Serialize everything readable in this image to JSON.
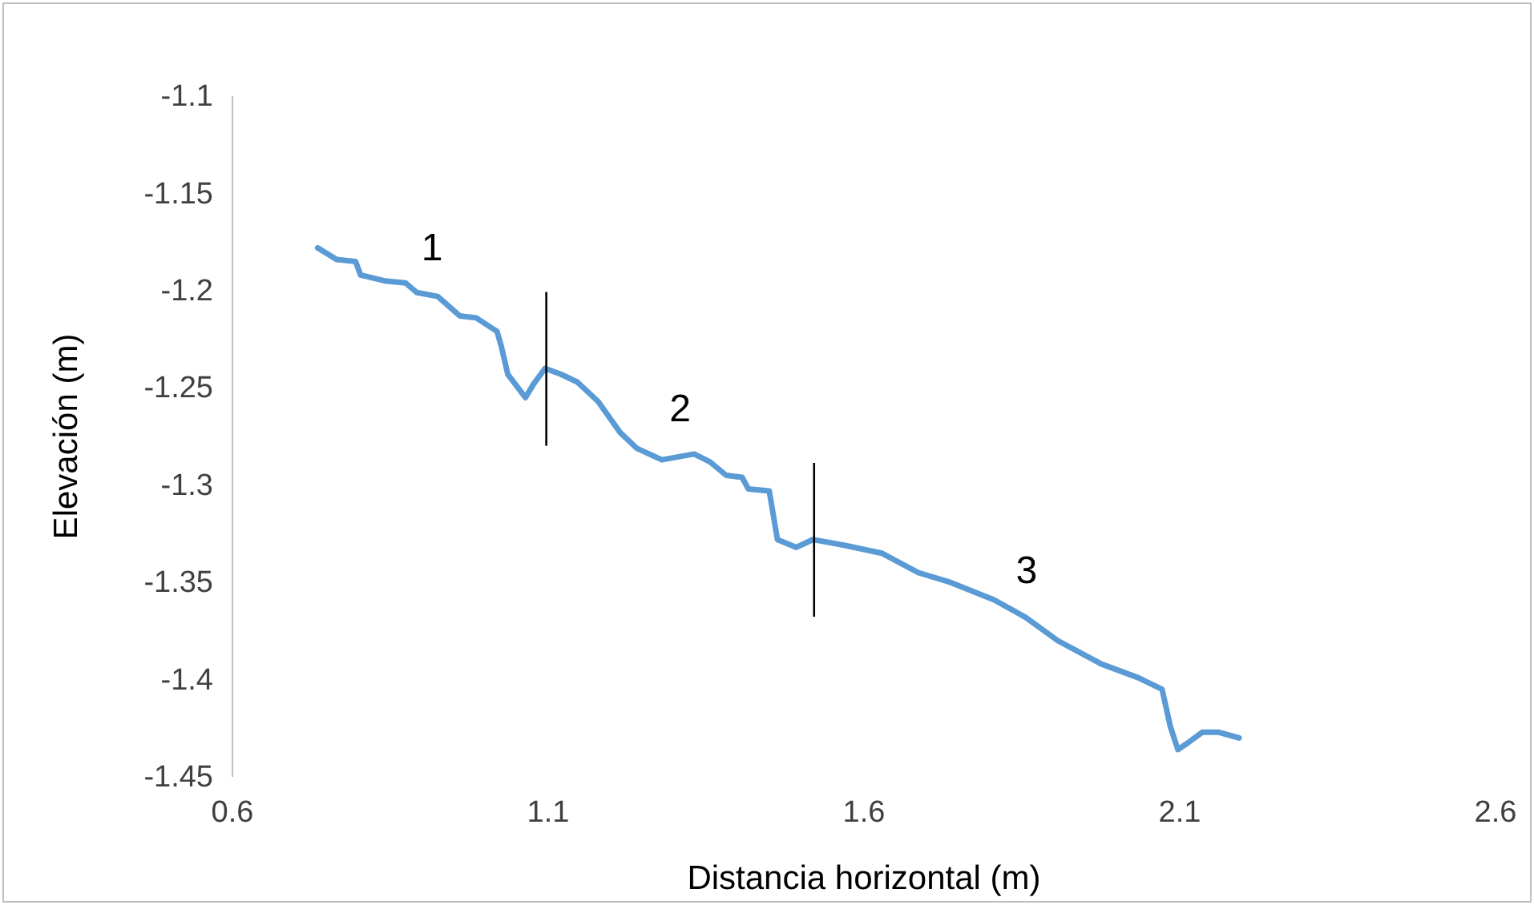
{
  "chart_data": {
    "type": "line",
    "xlabel": "Distancia horizontal (m)",
    "ylabel": "Elevación (m)",
    "xlim": [
      0.6,
      2.6
    ],
    "xticks": [
      0.6,
      1.1,
      1.6,
      2.1,
      2.6
    ],
    "ylim": [
      -1.45,
      -1.1
    ],
    "yticks": [
      -1.45,
      -1.4,
      -1.35,
      -1.3,
      -1.25,
      -1.2,
      -1.15,
      -1.1
    ],
    "grid": false,
    "marker": "none",
    "line_style": "solid",
    "series": [
      {
        "color": "#5b9bd5",
        "x": [
          0.735,
          0.765,
          0.795,
          0.803,
          0.841,
          0.874,
          0.892,
          0.925,
          0.96,
          0.986,
          1.019,
          1.026,
          1.036,
          1.064,
          1.077,
          1.095,
          1.12,
          1.146,
          1.179,
          1.214,
          1.24,
          1.28,
          1.331,
          1.356,
          1.382,
          1.407,
          1.417,
          1.45,
          1.463,
          1.493,
          1.519,
          1.57,
          1.628,
          1.686,
          1.737,
          1.806,
          1.856,
          1.907,
          1.976,
          2.034,
          2.072,
          2.085,
          2.097,
          2.115,
          2.136,
          2.161,
          2.194
        ],
        "values": [
          -1.178,
          -1.184,
          -1.185,
          -1.192,
          -1.195,
          -1.196,
          -1.201,
          -1.203,
          -1.213,
          -1.214,
          -1.221,
          -1.229,
          -1.243,
          -1.255,
          -1.248,
          -1.24,
          -1.243,
          -1.247,
          -1.257,
          -1.273,
          -1.281,
          -1.287,
          -1.284,
          -1.288,
          -1.295,
          -1.296,
          -1.302,
          -1.303,
          -1.328,
          -1.332,
          -1.328,
          -1.331,
          -1.335,
          -1.345,
          -1.35,
          -1.359,
          -1.368,
          -1.38,
          -1.392,
          -1.399,
          -1.405,
          -1.424,
          -1.436,
          -1.432,
          -1.427,
          -1.427,
          -1.43
        ]
      }
    ],
    "ref_lines": [
      {
        "axis": "x",
        "value": 1.097,
        "color": "#000000"
      },
      {
        "axis": "x",
        "value": 1.521,
        "color": "#000000"
      }
    ],
    "annotations": [
      "1",
      "2",
      "3"
    ]
  }
}
